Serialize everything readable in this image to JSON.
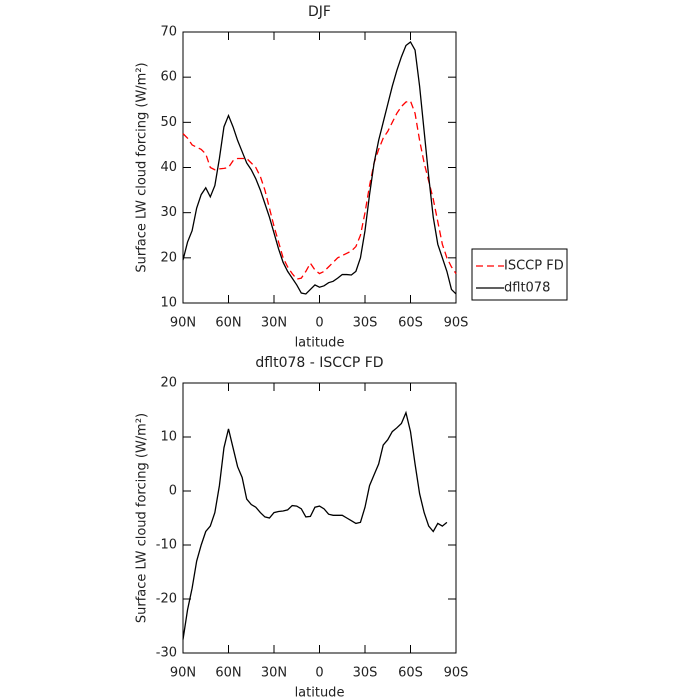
{
  "chart_data": [
    {
      "type": "line",
      "title": "DJF",
      "xlabel": "latitude",
      "ylabel": "Surface LW cloud forcing (W/m²)",
      "x": [
        90,
        87,
        84,
        81,
        78,
        75,
        72,
        69,
        66,
        63,
        60,
        57,
        54,
        51,
        48,
        45,
        42,
        39,
        36,
        33,
        30,
        27,
        24,
        21,
        18,
        15,
        12,
        9,
        6,
        3,
        0,
        -3,
        -6,
        -9,
        -12,
        -15,
        -18,
        -21,
        -24,
        -27,
        -30,
        -33,
        -36,
        -39,
        -42,
        -45,
        -48,
        -51,
        -54,
        -57,
        -60,
        -63,
        -66,
        -69,
        -72,
        -75,
        -78,
        -81,
        -84,
        -87,
        -90
      ],
      "series": [
        {
          "name": "ISCCP FD",
          "color": "#ff0000",
          "dashed": true,
          "values": [
            47.5,
            46.5,
            45,
            44.5,
            44,
            43,
            40,
            39.5,
            39.7,
            39.8,
            40,
            41.5,
            42,
            42,
            42,
            41,
            40,
            38,
            35,
            31,
            27,
            23.5,
            20,
            18,
            16.5,
            15.3,
            15.5,
            17,
            18.8,
            17.3,
            16.5,
            17,
            18,
            19,
            20,
            20.5,
            21,
            21.5,
            22.5,
            25,
            30,
            36,
            41,
            44,
            46.5,
            48,
            50,
            52,
            53.5,
            54.5,
            54.7,
            52,
            46,
            41,
            37,
            33,
            28,
            23,
            20,
            18,
            16.5
          ]
        },
        {
          "name": "dflt078",
          "color": "#000000",
          "dashed": false,
          "values": [
            19.5,
            23.5,
            26,
            31,
            34,
            35.5,
            33.5,
            36,
            42,
            49,
            51.5,
            49,
            46,
            43.5,
            41,
            39.5,
            37.5,
            35,
            32,
            29,
            25.5,
            22,
            19,
            17,
            15.5,
            14,
            12.2,
            12,
            13,
            14,
            13.5,
            13.8,
            14.5,
            14.8,
            15.5,
            16.3,
            16.3,
            16.2,
            17,
            20,
            26,
            34,
            41,
            46,
            50,
            54,
            58,
            61.5,
            64.5,
            67,
            67.8,
            66,
            58,
            48,
            38,
            29,
            23,
            20,
            17,
            13,
            12
          ]
        }
      ],
      "xlim": [
        90,
        -90
      ],
      "xticks": [
        {
          "value": 90,
          "label": "90N"
        },
        {
          "value": 60,
          "label": "60N"
        },
        {
          "value": 30,
          "label": "30N"
        },
        0,
        {
          "value": -30,
          "label": "30S"
        },
        {
          "value": -60,
          "label": "60S"
        },
        {
          "value": -90,
          "label": "90S"
        }
      ],
      "ylim": [
        10,
        70
      ],
      "yticks": [
        10,
        20,
        30,
        40,
        50,
        60,
        70
      ],
      "legend": "right"
    },
    {
      "type": "line",
      "title": "dflt078 - ISCCP FD",
      "xlabel": "latitude",
      "ylabel": "Surface LW cloud forcing (W/m²)",
      "x": [
        90,
        87,
        84,
        81,
        78,
        75,
        72,
        69,
        66,
        63,
        60,
        57,
        54,
        51,
        48,
        45,
        42,
        39,
        36,
        33,
        30,
        27,
        24,
        21,
        18,
        15,
        12,
        9,
        6,
        3,
        0,
        -3,
        -6,
        -9,
        -12,
        -15,
        -18,
        -21,
        -24,
        -27,
        -30,
        -33,
        -36,
        -39,
        -42,
        -45,
        -48,
        -51,
        -54,
        -57,
        -60,
        -63,
        -66,
        -69,
        -72,
        -75,
        -78,
        -81,
        -84
      ],
      "series": [
        {
          "color": "#000000",
          "dashed": false,
          "values": [
            -27.5,
            -22,
            -18,
            -13,
            -10,
            -7.5,
            -6.5,
            -4,
            1,
            8,
            11.5,
            8,
            4.5,
            2.5,
            -1.5,
            -2.5,
            -3,
            -4,
            -4.8,
            -5,
            -4,
            -3.8,
            -3.7,
            -3.5,
            -2.7,
            -2.8,
            -3.3,
            -4.8,
            -4.7,
            -3,
            -2.8,
            -3.3,
            -4.3,
            -4.5,
            -4.5,
            -4.5,
            -5,
            -5.5,
            -6,
            -5.8,
            -3,
            1,
            3,
            5,
            8.5,
            9.5,
            11,
            11.7,
            12.5,
            14.5,
            11,
            5,
            -0.5,
            -4,
            -6.5,
            -7.5,
            -6,
            -6.5,
            -5.8
          ]
        }
      ],
      "xlim": [
        90,
        -90
      ],
      "xticks": [
        {
          "value": 90,
          "label": "90N"
        },
        {
          "value": 60,
          "label": "60N"
        },
        {
          "value": 30,
          "label": "30N"
        },
        0,
        {
          "value": -30,
          "label": "30S"
        },
        {
          "value": -60,
          "label": "60S"
        },
        {
          "value": -90,
          "label": "90S"
        }
      ],
      "ylim": [
        -30,
        20
      ],
      "yticks": [
        -30,
        -20,
        -10,
        0,
        10,
        20
      ]
    }
  ]
}
